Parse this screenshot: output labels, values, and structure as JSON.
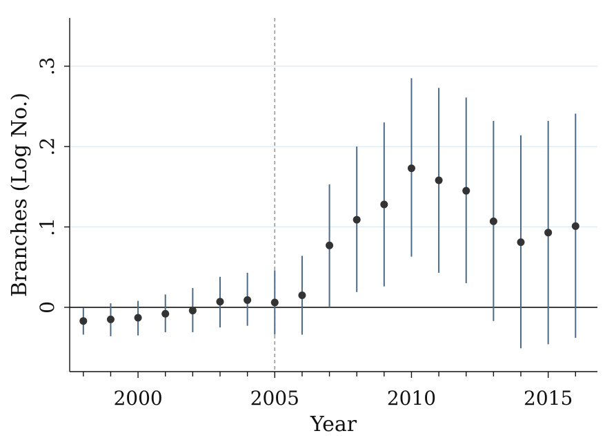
{
  "chart_data": {
    "type": "scatter",
    "title": "",
    "xlabel": "Year",
    "ylabel": "Branches (Log No.)",
    "x_ticks": [
      2000,
      2005,
      2010,
      2015
    ],
    "x_tick_labels": [
      "2000",
      "2005",
      "2010",
      "2015"
    ],
    "y_ticks": [
      0,
      0.1,
      0.2,
      0.3
    ],
    "y_tick_labels": [
      "0",
      ".1",
      ".2",
      ".3"
    ],
    "xlim": [
      1997.5,
      2016.8
    ],
    "ylim": [
      -0.08,
      0.36
    ],
    "reference_line_x": 2005,
    "grid": "horizontal",
    "colors": {
      "point": "#333333",
      "ci": "#4a6a88",
      "grid": "#d6e6ef",
      "refline": "#999999",
      "zeroline": "#111111"
    },
    "series": [
      {
        "x": [
          1998,
          1999,
          2000,
          2001,
          2002,
          2003,
          2004,
          2005,
          2006,
          2007,
          2008,
          2009,
          2010,
          2011,
          2012,
          2013,
          2014,
          2015,
          2016
        ],
        "y": [
          -0.017,
          -0.015,
          -0.013,
          -0.008,
          -0.004,
          0.007,
          0.009,
          0.006,
          0.015,
          0.077,
          0.109,
          0.128,
          0.173,
          0.158,
          0.145,
          0.107,
          0.081,
          0.093,
          0.101
        ],
        "ci_low": [
          -0.034,
          -0.036,
          -0.035,
          -0.031,
          -0.031,
          -0.025,
          -0.023,
          -0.034,
          -0.034,
          0.0,
          0.019,
          0.026,
          0.063,
          0.043,
          0.03,
          -0.017,
          -0.051,
          -0.046,
          -0.038
        ],
        "ci_high": [
          -0.001,
          0.005,
          0.008,
          0.016,
          0.024,
          0.038,
          0.043,
          0.046,
          0.064,
          0.153,
          0.2,
          0.23,
          0.285,
          0.273,
          0.261,
          0.232,
          0.214,
          0.232,
          0.241
        ]
      }
    ]
  }
}
